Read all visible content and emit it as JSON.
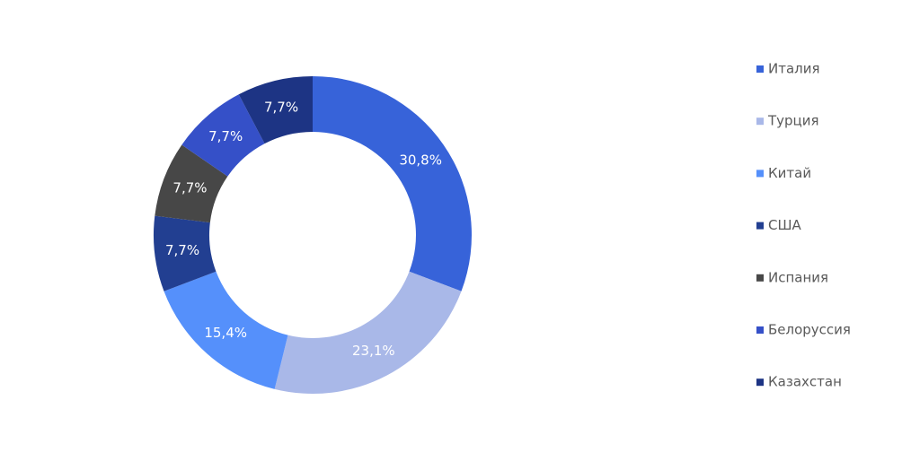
{
  "chart_data": {
    "type": "donut",
    "categories": [
      "Италия",
      "Турция",
      "Китай",
      "США",
      "Испания",
      "Белоруссия",
      "Казахстан"
    ],
    "values": [
      30.8,
      23.1,
      15.4,
      7.7,
      7.7,
      7.7,
      7.7
    ],
    "value_labels": [
      "30,8%",
      "23,1%",
      "15,4%",
      "7,7%",
      "7,7%",
      "7,7%",
      "7,7%"
    ],
    "colors": [
      "#3763d9",
      "#a9b8e8",
      "#5590fb",
      "#223f91",
      "#474747",
      "#3550c8",
      "#1d3484"
    ],
    "legend": "right"
  }
}
